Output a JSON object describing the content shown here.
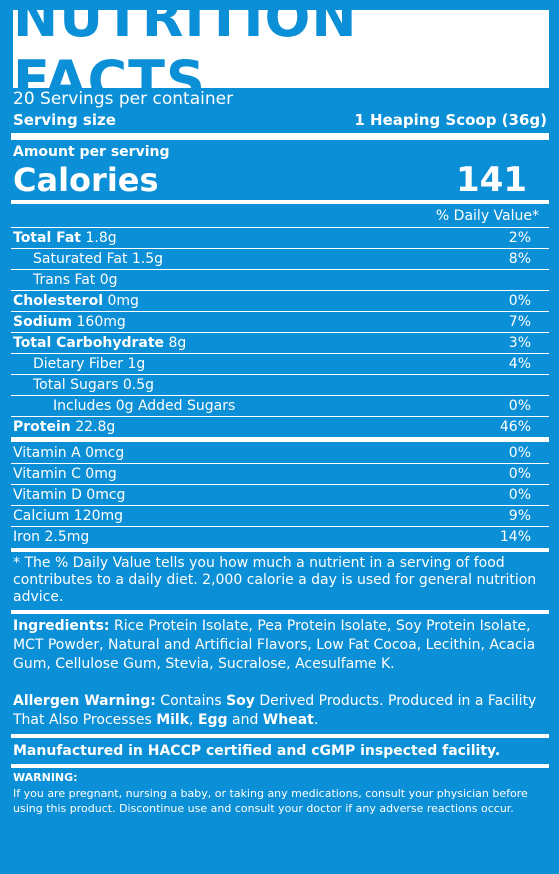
{
  "title": "NUTRITION FACTS",
  "servings": "20 Servings per container",
  "serving_size": {
    "label": "Serving size",
    "value": "1 Heaping Scoop (36g)"
  },
  "amount_per_serving": "Amount per serving",
  "calories": {
    "label": "Calories",
    "value": "141"
  },
  "daily_value_header": "% Daily Value*",
  "nutrients": [
    {
      "name": "Total Fat",
      "amount": " 1.8g",
      "dv": "2%"
    },
    {
      "name": "",
      "amount": "Saturated Fat 1.5g",
      "dv": "8%"
    },
    {
      "name": "",
      "amount": "Trans Fat 0g",
      "dv": ""
    },
    {
      "name": "Cholesterol",
      "amount": " 0mg",
      "dv": "0%"
    },
    {
      "name": "Sodium",
      "amount": " 160mg",
      "dv": "7%"
    },
    {
      "name": "Total Carbohydrate",
      "amount": " 8g",
      "dv": "3%"
    },
    {
      "name": "",
      "amount": "Dietary Fiber 1g",
      "dv": "4%"
    },
    {
      "name": "",
      "amount": "Total Sugars 0.5g",
      "dv": ""
    },
    {
      "name": "",
      "amount": "Includes 0g Added Sugars",
      "dv": "0%"
    },
    {
      "name": "Protein",
      "amount": " 22.8g",
      "dv": "46%"
    }
  ],
  "vitamins": [
    {
      "label": "Vitamin A 0mcg",
      "dv": "0%"
    },
    {
      "label": "Vitamin C 0mg",
      "dv": "0%"
    },
    {
      "label": "Vitamin D 0mcg",
      "dv": "0%"
    },
    {
      "label": "Calcium 120mg",
      "dv": "9%"
    },
    {
      "label": "Iron 2.5mg",
      "dv": "14%"
    }
  ],
  "footnote": "* The % Daily Value tells you how much a nutrient in a serving of food contributes to a daily diet. 2,000 calorie a day is used for general nutrition advice.",
  "ingredients": {
    "label": "Ingredients:",
    "text": " Rice Protein Isolate, Pea Protein Isolate, Soy Protein Isolate, MCT Powder, Natural and Artificial Flavors, Low Fat Cocoa, Lecithin, Acacia Gum, Cellulose Gum, Stevia, Sucralose, Acesulfame K."
  },
  "allergen": {
    "label": "Allergen Warning:",
    "t1": " Contains ",
    "soy": "Soy",
    "t2": " Derived Products. Produced in a Facility That Also Processes ",
    "milk": "Milk",
    "t3": ", ",
    "egg": "Egg",
    "t4": " and ",
    "wheat": "Wheat",
    "t5": "."
  },
  "manufactured": "Manufactured in HACCP certified and cGMP inspected facility.",
  "warning": {
    "title": "WARNING:",
    "text": "If you are pregnant, nursing a baby, or taking any medications, consult your physician before using this product. Discontinue use and consult your doctor if any adverse reactions occur."
  }
}
